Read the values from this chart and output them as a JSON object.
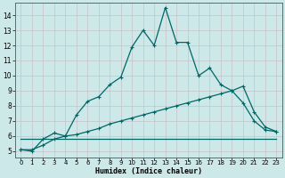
{
  "xlabel": "Humidex (Indice chaleur)",
  "bg_color": "#cce8e8",
  "grid_color": "#b8d8d8",
  "line_color": "#006666",
  "xlim": [
    -0.5,
    23.5
  ],
  "ylim": [
    4.6,
    14.8
  ],
  "xticks": [
    0,
    1,
    2,
    3,
    4,
    5,
    6,
    7,
    8,
    9,
    10,
    11,
    12,
    13,
    14,
    15,
    16,
    17,
    18,
    19,
    20,
    21,
    22,
    23
  ],
  "yticks": [
    5,
    6,
    7,
    8,
    9,
    10,
    11,
    12,
    13,
    14
  ],
  "line1_x": [
    0,
    1,
    2,
    3,
    4,
    5,
    6,
    7,
    8,
    9,
    10,
    11,
    12,
    13,
    14,
    15,
    16,
    17,
    18,
    19,
    20,
    21,
    22,
    23
  ],
  "line1_y": [
    5.1,
    5.0,
    5.8,
    6.2,
    6.0,
    7.4,
    8.3,
    8.6,
    9.4,
    9.9,
    11.9,
    13.0,
    12.0,
    14.5,
    12.2,
    12.2,
    10.0,
    10.5,
    9.4,
    9.0,
    8.2,
    7.0,
    6.4,
    6.3
  ],
  "line2_x": [
    0,
    1,
    2,
    3,
    4,
    5,
    6,
    7,
    8,
    9,
    10,
    11,
    12,
    13,
    14,
    15,
    16,
    17,
    18,
    19,
    20,
    21,
    22,
    23
  ],
  "line2_y": [
    5.1,
    5.1,
    5.4,
    5.8,
    6.0,
    6.1,
    6.3,
    6.5,
    6.8,
    7.0,
    7.2,
    7.4,
    7.6,
    7.8,
    8.0,
    8.2,
    8.4,
    8.6,
    8.8,
    9.0,
    9.3,
    7.6,
    6.6,
    6.3
  ],
  "line3_x": [
    0,
    23
  ],
  "line3_y": [
    5.8,
    5.8
  ]
}
